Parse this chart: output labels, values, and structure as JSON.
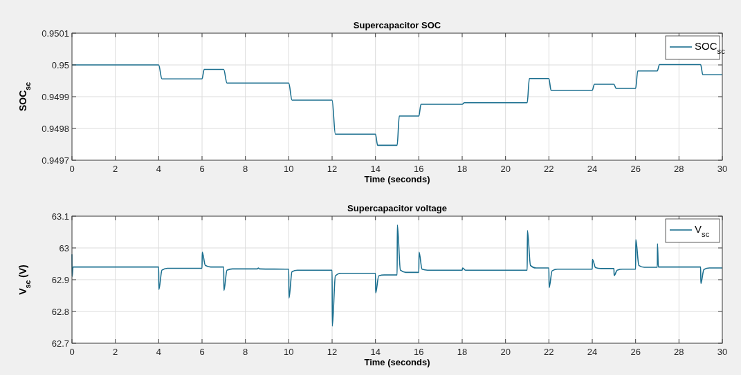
{
  "chart_data": [
    {
      "type": "line",
      "title": "Supercapacitor SOC",
      "xlabel": "Time (seconds)",
      "ylabel": "SOC$_{sc}$",
      "xlim": [
        0,
        30
      ],
      "xticks": [
        0,
        2,
        4,
        6,
        8,
        10,
        12,
        14,
        16,
        18,
        20,
        22,
        24,
        26,
        28,
        30
      ],
      "ylim": [
        0.9497,
        0.9501
      ],
      "yticks": [
        0.9497,
        0.9498,
        0.9499,
        0.95,
        0.9501
      ],
      "grid": true,
      "legend": "top right",
      "series": [
        {
          "name": "SOC$_{sc}$",
          "color": "#1b6f8f",
          "x": [
            0,
            4,
            4.15,
            6,
            6.1,
            7,
            7.15,
            10,
            10.15,
            12,
            12.15,
            14,
            14.1,
            15,
            15.1,
            16,
            16.1,
            18,
            18.1,
            21,
            21.1,
            22,
            22.1,
            24,
            24.1,
            25,
            25.1,
            26,
            26.1,
            27,
            27.1,
            29,
            29.1,
            30
          ],
          "values": [
            0.95,
            0.95,
            0.949956,
            0.949956,
            0.949986,
            0.949986,
            0.949943,
            0.949943,
            0.949889,
            0.949889,
            0.949782,
            0.949782,
            0.949747,
            0.949747,
            0.949839,
            0.949839,
            0.949876,
            0.949876,
            0.949881,
            0.949881,
            0.949957,
            0.949957,
            0.94992,
            0.94992,
            0.949939,
            0.949939,
            0.949926,
            0.949926,
            0.949981,
            0.949981,
            0.950001,
            0.950001,
            0.949969,
            0.949969
          ]
        }
      ]
    },
    {
      "type": "line",
      "title": "Supercapacitor voltage",
      "xlabel": "Time (seconds)",
      "ylabel": "V$_{sc}$ (V)",
      "xlim": [
        0,
        30
      ],
      "xticks": [
        0,
        2,
        4,
        6,
        8,
        10,
        12,
        14,
        16,
        18,
        20,
        22,
        24,
        26,
        28,
        30
      ],
      "ylim": [
        62.7,
        63.1
      ],
      "yticks": [
        62.7,
        62.8,
        62.9,
        63,
        63.1
      ],
      "grid": true,
      "legend": "top right",
      "series": [
        {
          "name": "V$_{sc}$",
          "color": "#1b6f8f",
          "x": [
            0,
            0.01,
            0.05,
            4,
            4.01,
            4.15,
            4.4,
            6,
            6.01,
            6.15,
            6.4,
            7,
            7.01,
            7.15,
            7.4,
            8.55,
            8.6,
            8.65,
            10,
            10.01,
            10.15,
            10.4,
            12,
            12.01,
            12.15,
            12.4,
            14,
            14.01,
            14.15,
            14.4,
            15,
            15.01,
            15.15,
            15.4,
            16,
            16.01,
            16.15,
            16.4,
            18,
            18.02,
            18.15,
            21,
            21.01,
            21.15,
            21.4,
            22,
            22.01,
            22.15,
            22.4,
            24,
            24.01,
            24.15,
            24.4,
            25,
            25.01,
            25.15,
            25.4,
            26,
            26.01,
            26.15,
            26.4,
            27,
            27.01,
            27.05,
            29,
            29.01,
            29.15,
            29.4,
            30
          ],
          "values": [
            62.98,
            62.91,
            62.94,
            62.94,
            62.869,
            62.93,
            62.936,
            62.936,
            62.987,
            62.945,
            62.94,
            62.94,
            62.866,
            62.93,
            62.934,
            62.934,
            62.937,
            62.934,
            62.933,
            62.842,
            62.925,
            62.93,
            62.93,
            62.754,
            62.912,
            62.92,
            62.92,
            62.858,
            62.912,
            62.915,
            62.915,
            63.072,
            62.93,
            62.923,
            62.923,
            62.987,
            62.933,
            62.93,
            62.93,
            62.937,
            62.93,
            62.93,
            63.055,
            62.945,
            62.937,
            62.937,
            62.875,
            62.928,
            62.933,
            62.933,
            62.964,
            62.938,
            62.935,
            62.935,
            62.913,
            62.93,
            62.933,
            62.933,
            63.026,
            62.945,
            62.939,
            62.939,
            63.013,
            62.94,
            62.94,
            62.888,
            62.932,
            62.937,
            62.937
          ]
        }
      ]
    }
  ]
}
